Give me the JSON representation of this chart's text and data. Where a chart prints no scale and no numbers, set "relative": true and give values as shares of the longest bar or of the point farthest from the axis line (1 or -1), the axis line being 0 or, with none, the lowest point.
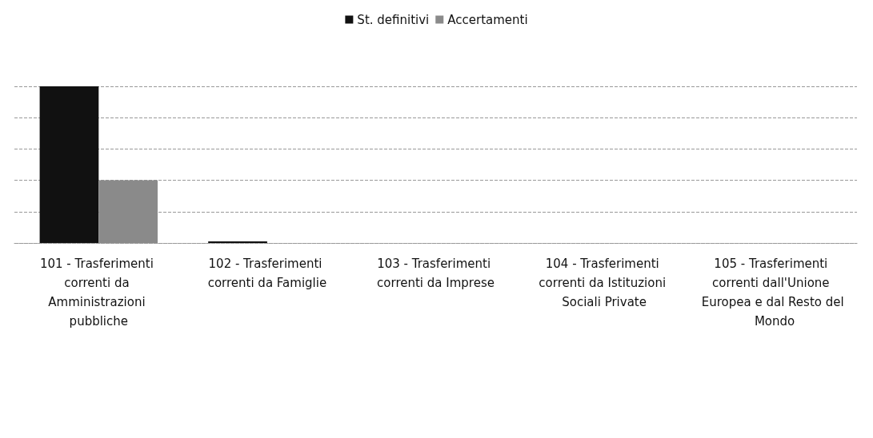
{
  "chart_data": {
    "type": "bar",
    "relative": true,
    "categories": [
      "101 - Trasferimenti correnti da Amministrazioni pubbliche",
      "102 - Trasferimenti correnti da Famiglie",
      "103 - Trasferimenti correnti da Imprese",
      "104 - Trasferimenti correnti da Istituzioni Sociali Private",
      "105 - Trasferimenti correnti dall'Unione Europea e dal Resto del Mondo"
    ],
    "series": [
      {
        "name": "St. definitivi",
        "color": "#111111",
        "values": [
          1,
          0.01,
          0,
          0,
          0
        ]
      },
      {
        "name": "Accertamenti",
        "color": "#8a8a8a",
        "values": [
          0.4,
          0,
          0,
          0,
          0
        ]
      }
    ],
    "grid": "y",
    "legend": "top"
  }
}
